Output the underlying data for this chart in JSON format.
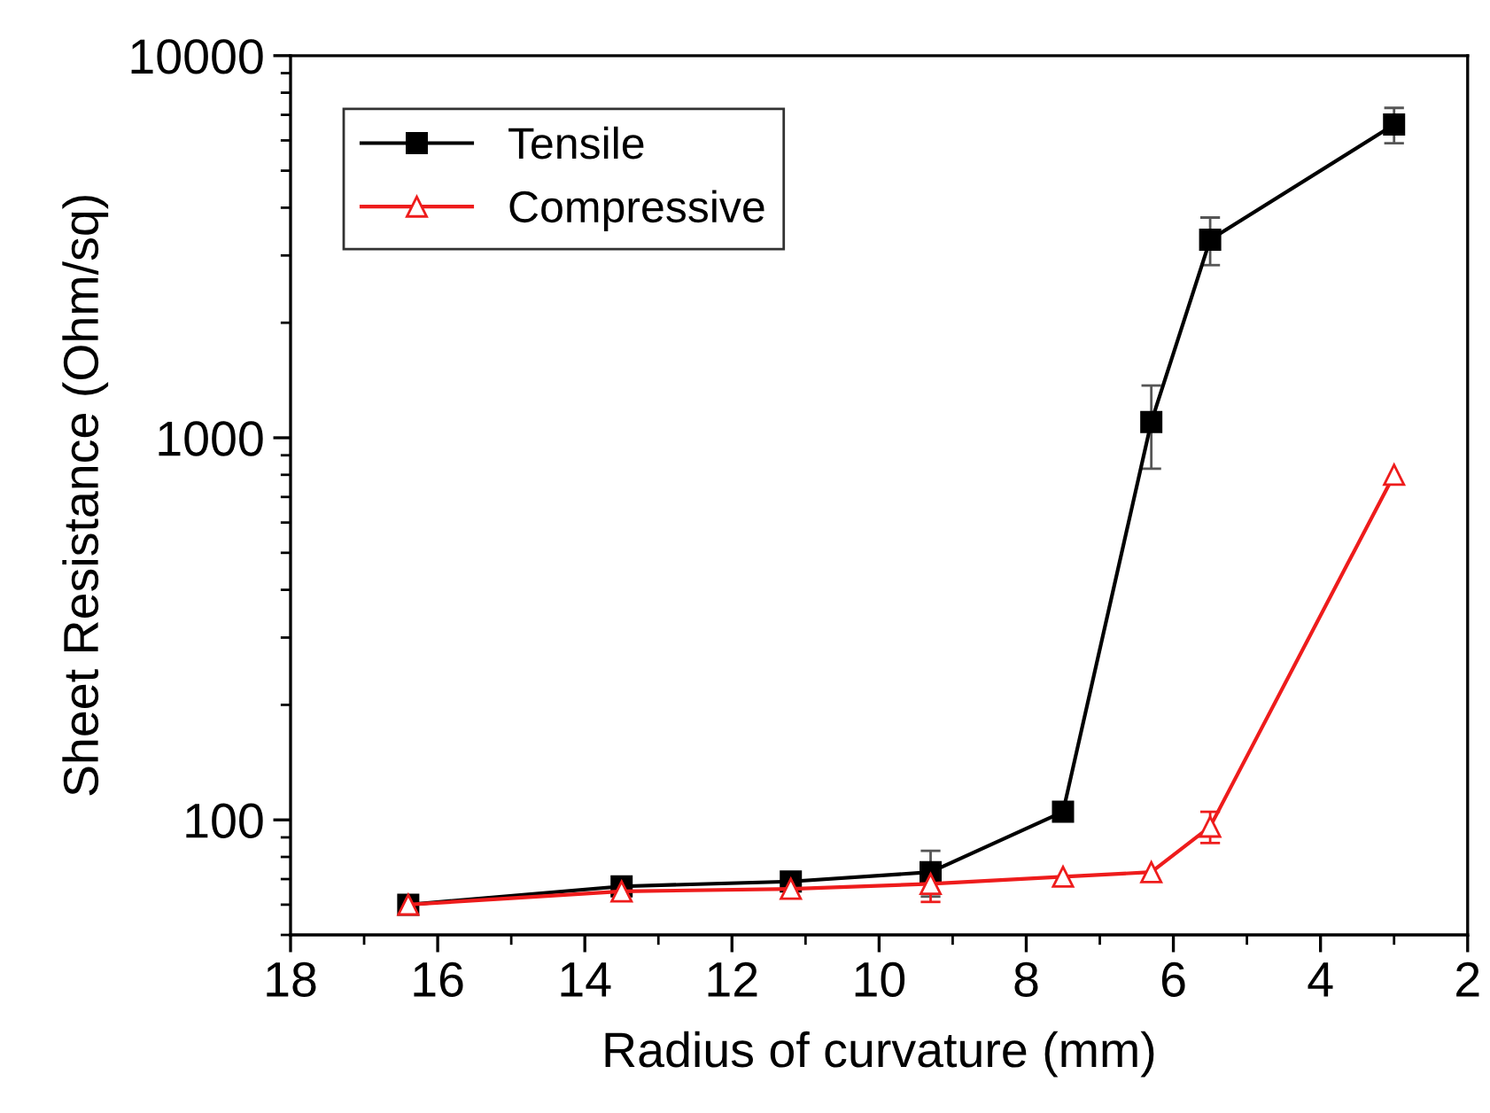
{
  "chart_data": {
    "type": "line",
    "xlabel": "Radius of curvature (mm)",
    "ylabel": "Sheet Resistance (Ohm/sq)",
    "log": "y",
    "xlim": [
      18,
      2
    ],
    "xticks": [
      18,
      16,
      14,
      12,
      10,
      8,
      6,
      4,
      2
    ],
    "ylim": [
      50,
      10000
    ],
    "yticks": [
      100,
      1000,
      10000
    ],
    "grid": false,
    "legend": "top left",
    "series": [
      {
        "name": "Tensile",
        "color": "#000000",
        "marker": "square",
        "x": [
          16.4,
          13.5,
          11.2,
          9.3,
          7.5,
          6.3,
          5.5,
          3.0
        ],
        "values": [
          60,
          67,
          69,
          73,
          105,
          1100,
          3300,
          6600
        ],
        "errors": [
          null,
          null,
          null,
          10,
          null,
          270,
          470,
          700
        ]
      },
      {
        "name": "Compressive",
        "color": "#ee1c1c",
        "marker": "triangle",
        "x": [
          16.4,
          13.5,
          11.2,
          9.3,
          7.5,
          6.3,
          5.5,
          3.0
        ],
        "values": [
          60,
          65,
          66,
          68,
          71,
          73,
          96,
          800
        ],
        "errors": [
          null,
          null,
          null,
          7,
          null,
          null,
          9,
          null
        ]
      }
    ]
  }
}
